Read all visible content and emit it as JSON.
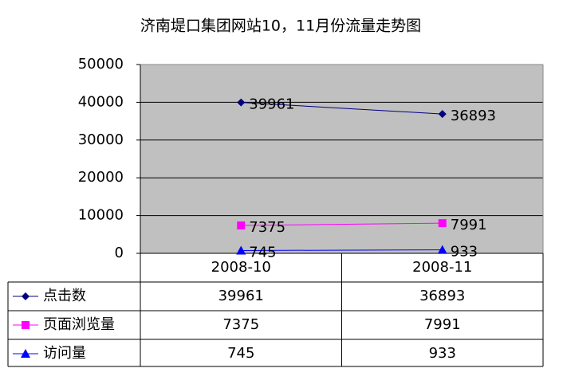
{
  "chart_data": {
    "type": "line",
    "title": "济南堤口集团网站10，11月份流量走势图",
    "categories": [
      "2008-10",
      "2008-11"
    ],
    "series": [
      {
        "name": "点击数",
        "color": "#000080",
        "marker": "diamond",
        "values": [
          39961,
          36893
        ]
      },
      {
        "name": "页面浏览量",
        "color": "#ff00ff",
        "marker": "square",
        "values": [
          7375,
          7991
        ]
      },
      {
        "name": "访问量",
        "color": "#0000ff",
        "marker": "triangle",
        "values": [
          745,
          933
        ]
      }
    ],
    "ylim": [
      0,
      50000
    ],
    "yticks": [
      0,
      10000,
      20000,
      30000,
      40000,
      50000
    ],
    "grid": true,
    "data_table": true
  }
}
